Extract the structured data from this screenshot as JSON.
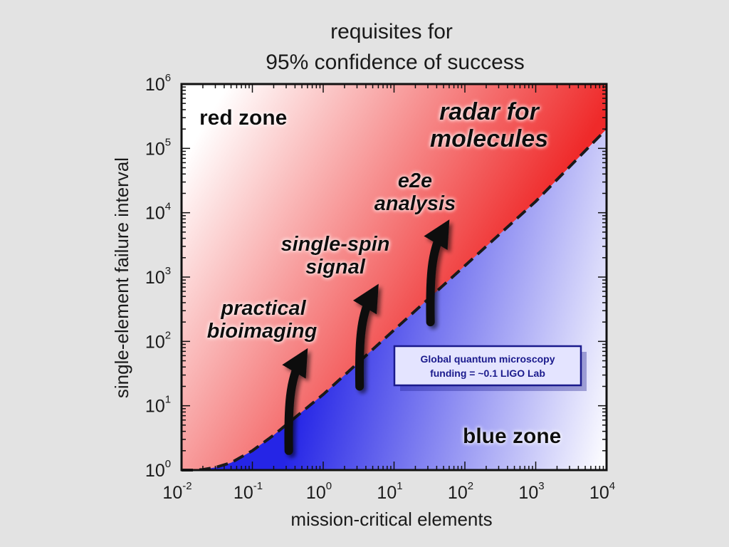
{
  "chart_data": {
    "type": "area",
    "title": [
      "requisites for",
      "95% confidence of success"
    ],
    "xlabel": "mission-critical elements",
    "ylabel": "single-element failure interval",
    "xscale": "log",
    "yscale": "log",
    "xlim": [
      0.01,
      10000
    ],
    "ylim": [
      1,
      1000000
    ],
    "x_ticks": [
      {
        "base": "10",
        "exp": "-2",
        "value": 0.01
      },
      {
        "base": "10",
        "exp": "-1",
        "value": 0.1
      },
      {
        "base": "10",
        "exp": "0",
        "value": 1
      },
      {
        "base": "10",
        "exp": "1",
        "value": 10
      },
      {
        "base": "10",
        "exp": "2",
        "value": 100
      },
      {
        "base": "10",
        "exp": "3",
        "value": 1000
      },
      {
        "base": "10",
        "exp": "4",
        "value": 10000
      }
    ],
    "y_ticks": [
      {
        "base": "10",
        "exp": "0",
        "value": 1
      },
      {
        "base": "10",
        "exp": "1",
        "value": 10
      },
      {
        "base": "10",
        "exp": "2",
        "value": 100
      },
      {
        "base": "10",
        "exp": "3",
        "value": 1000
      },
      {
        "base": "10",
        "exp": "4",
        "value": 10000
      },
      {
        "base": "10",
        "exp": "5",
        "value": 100000
      },
      {
        "base": "10",
        "exp": "6",
        "value": 1000000
      }
    ],
    "boundary_curve": {
      "style": "dashed",
      "x": [
        0.01,
        0.015,
        0.02,
        0.03,
        0.05,
        0.1,
        0.2,
        0.5,
        1,
        2,
        5,
        10,
        100,
        1000,
        10000
      ],
      "y": [
        1,
        1,
        1.02,
        1.1,
        1.3,
        2,
        3.5,
        8,
        15,
        30,
        75,
        150,
        1500,
        15000,
        200000
      ]
    },
    "zones": [
      {
        "label": "red zone",
        "color": "#e01b1b"
      },
      {
        "label": "blue zone",
        "color": "#2a2ae6"
      }
    ],
    "arrows": [
      {
        "label": [
          "practical",
          "bioimaging"
        ],
        "x": 0.35,
        "y_from": 2,
        "y_to": 60
      },
      {
        "label": [
          "single-spin",
          "signal"
        ],
        "x": 3.5,
        "y_from": 20,
        "y_to": 600
      },
      {
        "label": [
          "e2e",
          "analysis"
        ],
        "x": 35,
        "y_from": 200,
        "y_to": 6000
      }
    ],
    "annotation_big": [
      "radar for",
      "molecules"
    ],
    "note_box": [
      "Global quantum microscopy",
      "funding = ~0.1 LIGO Lab"
    ]
  }
}
